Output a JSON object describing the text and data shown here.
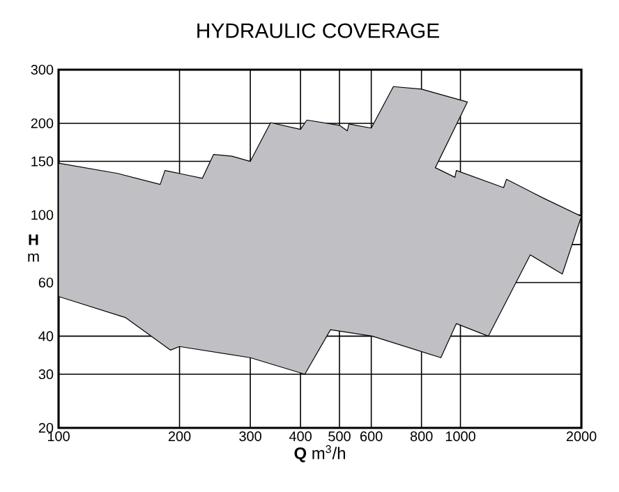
{
  "chart_data": {
    "type": "area",
    "title": "HYDRAULIC COVERAGE",
    "xlabel": "**Q**  m$^{3}$/h",
    "ylabel": "**H** m",
    "log": "xy",
    "grid": true,
    "xlim": [
      100,
      2000
    ],
    "ylim": [
      20,
      300
    ],
    "xticks": [
      100,
      200,
      300,
      400,
      500,
      600,
      800,
      1000,
      2000
    ],
    "yticks": [
      20,
      30,
      40,
      60,
      {
        "value": 80,
        "label": null
      },
      100,
      150,
      200,
      300
    ],
    "series": [
      {
        "color": "#c0c0c4",
        "x": [
          100,
          140,
          179,
          184,
          228,
          243,
          270,
          300,
          337,
          400,
          415,
          500,
          523,
          528,
          600,
          681,
          800,
          1041,
          866,
          969,
          977,
          1281,
          1302,
          1600,
          2000,
          1793,
          1492,
          1173,
          977,
          894,
          604,
          475,
          410,
          300,
          200,
          190,
          147,
          100
        ],
        "values": [
          148,
          137,
          126,
          140,
          132,
          158,
          156,
          150,
          201,
          191,
          205,
          197,
          189,
          199,
          193,
          264,
          259,
          235,
          143,
          133,
          140,
          123,
          131,
          114,
          99,
          64,
          74,
          40,
          44,
          34,
          40,
          42,
          30,
          34,
          37,
          36,
          46,
          54
        ]
      }
    ]
  }
}
